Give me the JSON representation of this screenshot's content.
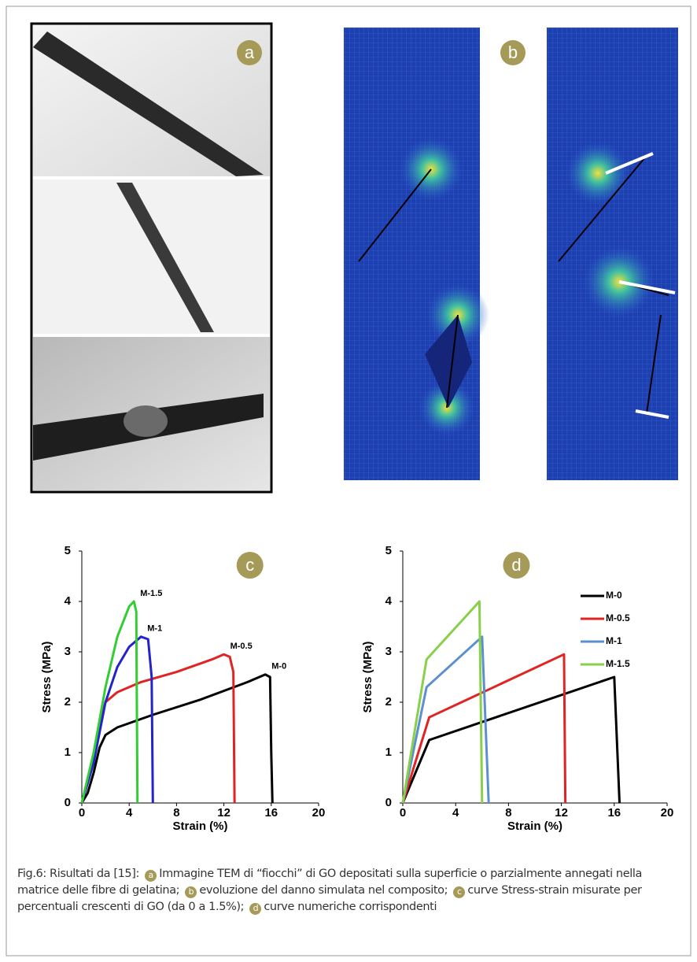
{
  "figure": {
    "panel_a": "a",
    "panel_b": "b"
  },
  "chart_data": [
    {
      "type": "line",
      "panel": "c",
      "xlabel": "Strain (%)",
      "ylabel": "Stress (MPa)",
      "xlim": [
        0,
        20
      ],
      "ylim": [
        0,
        5
      ],
      "xticks": [
        0,
        4,
        8,
        12,
        16,
        20
      ],
      "yticks": [
        0,
        1,
        2,
        3,
        4,
        5
      ],
      "legend": false,
      "series_labels": true,
      "series": [
        {
          "name": "M-0",
          "color": "#000000",
          "x": [
            0,
            0.5,
            1,
            1.5,
            2,
            3,
            6,
            10,
            14,
            15.5,
            15.9,
            16,
            16.1
          ],
          "values": [
            0,
            0.2,
            0.6,
            1.1,
            1.35,
            1.5,
            1.75,
            2.05,
            2.4,
            2.55,
            2.5,
            1.0,
            0
          ]
        },
        {
          "name": "M-0.5",
          "color": "#e02424",
          "x": [
            0,
            1,
            1.5,
            2,
            3,
            5,
            8,
            11,
            12,
            12.5,
            12.8,
            12.9
          ],
          "values": [
            0,
            0.8,
            1.6,
            2.0,
            2.2,
            2.4,
            2.6,
            2.85,
            2.95,
            2.9,
            2.6,
            0
          ]
        },
        {
          "name": "M-1",
          "color": "#2323cc",
          "x": [
            0,
            1,
            2,
            3,
            4,
            5,
            5.6,
            5.9,
            6
          ],
          "values": [
            0,
            0.8,
            2.0,
            2.7,
            3.1,
            3.3,
            3.25,
            2.5,
            0
          ]
        },
        {
          "name": "M-1.5",
          "color": "#33cc33",
          "x": [
            0,
            1,
            2,
            3,
            4,
            4.4,
            4.6,
            4.7
          ],
          "values": [
            0,
            1.0,
            2.3,
            3.3,
            3.9,
            4.0,
            3.8,
            0
          ]
        }
      ]
    },
    {
      "type": "line",
      "panel": "d",
      "xlabel": "Strain (%)",
      "ylabel": "Stress (MPa)",
      "xlim": [
        0,
        20
      ],
      "ylim": [
        0,
        5
      ],
      "xticks": [
        0,
        4,
        8,
        12,
        16,
        20
      ],
      "yticks": [
        0,
        1,
        2,
        3,
        4,
        5
      ],
      "legend": "upper right",
      "series_labels": false,
      "series": [
        {
          "name": "M-0",
          "color": "#000000",
          "x": [
            0,
            2,
            16,
            16.4
          ],
          "values": [
            0,
            1.25,
            2.5,
            0
          ]
        },
        {
          "name": "M-0.5",
          "color": "#e02424",
          "x": [
            0,
            2,
            12.2,
            12.3
          ],
          "values": [
            0,
            1.7,
            2.95,
            0
          ]
        },
        {
          "name": "M-1",
          "color": "#5b8fd0",
          "x": [
            0,
            1.8,
            6,
            6.5
          ],
          "values": [
            0,
            2.3,
            3.3,
            0
          ]
        },
        {
          "name": "M-1.5",
          "color": "#88d04a",
          "x": [
            0,
            1.8,
            5.8,
            6
          ],
          "values": [
            0,
            2.85,
            4.0,
            0
          ]
        }
      ]
    }
  ],
  "caption": {
    "intro": "Fig.6: Risultati da [15]:",
    "items": [
      {
        "label": "a",
        "text": "Immagine TEM di “fiocchi” di GO depositati sulla superficie o parzialmente annegati nella matrice delle fibre di gelatina;"
      },
      {
        "label": "b",
        "text": "evoluzione del danno simulata nel composito;"
      },
      {
        "label": "c",
        "text": "curve Stress-strain misurate per percentuali crescenti di GO (da 0 a 1.5%);"
      },
      {
        "label": "d",
        "text": "curve numeriche corrispondenti"
      }
    ]
  }
}
